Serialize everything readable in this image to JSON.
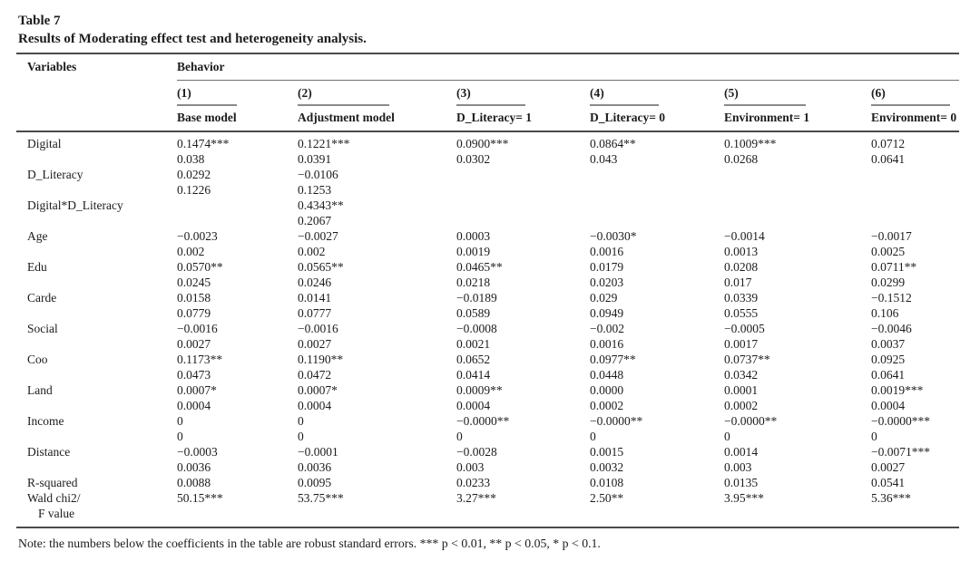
{
  "title": {
    "table_number": "Table 7",
    "caption": "Results of Moderating effect test and heterogeneity analysis."
  },
  "table": {
    "corner_header": "Variables",
    "group_header": "Behavior",
    "column_numbers": [
      "(1)",
      "(2)",
      "(3)",
      "(4)",
      "(5)",
      "(6)"
    ],
    "column_models": [
      "Base model",
      "Adjustment model",
      "D_Literacy= 1",
      "D_Literacy= 0",
      "Environment= 1",
      "Environment= 0"
    ],
    "rows": [
      {
        "label": "Digital",
        "indent": false,
        "cells": [
          "0.1474***",
          "0.1221***",
          "0.0900***",
          "0.0864**",
          "0.1009***",
          "0.0712"
        ]
      },
      {
        "label": "",
        "indent": false,
        "cells": [
          "0.038",
          "0.0391",
          "0.0302",
          "0.043",
          "0.0268",
          "0.0641"
        ]
      },
      {
        "label": "D_Literacy",
        "indent": false,
        "cells": [
          "0.0292",
          "−0.0106",
          "",
          "",
          "",
          ""
        ]
      },
      {
        "label": "",
        "indent": false,
        "cells": [
          "0.1226",
          "0.1253",
          "",
          "",
          "",
          ""
        ]
      },
      {
        "label": "Digital*D_Literacy",
        "indent": false,
        "cells": [
          "",
          "0.4343**",
          "",
          "",
          "",
          ""
        ]
      },
      {
        "label": "",
        "indent": false,
        "cells": [
          "",
          "0.2067",
          "",
          "",
          "",
          ""
        ]
      },
      {
        "label": "Age",
        "indent": false,
        "cells": [
          "−0.0023",
          "−0.0027",
          "0.0003",
          "−0.0030*",
          "−0.0014",
          "−0.0017"
        ]
      },
      {
        "label": "",
        "indent": false,
        "cells": [
          "0.002",
          "0.002",
          "0.0019",
          "0.0016",
          "0.0013",
          "0.0025"
        ]
      },
      {
        "label": "Edu",
        "indent": false,
        "cells": [
          "0.0570**",
          "0.0565**",
          "0.0465**",
          "0.0179",
          "0.0208",
          "0.0711**"
        ]
      },
      {
        "label": "",
        "indent": false,
        "cells": [
          "0.0245",
          "0.0246",
          "0.0218",
          "0.0203",
          "0.017",
          "0.0299"
        ]
      },
      {
        "label": "Carde",
        "indent": false,
        "cells": [
          "0.0158",
          "0.0141",
          "−0.0189",
          "0.029",
          "0.0339",
          "−0.1512"
        ]
      },
      {
        "label": "",
        "indent": false,
        "cells": [
          "0.0779",
          "0.0777",
          "0.0589",
          "0.0949",
          "0.0555",
          "0.106"
        ]
      },
      {
        "label": "Social",
        "indent": false,
        "cells": [
          "−0.0016",
          "−0.0016",
          "−0.0008",
          "−0.002",
          "−0.0005",
          "−0.0046"
        ]
      },
      {
        "label": "",
        "indent": false,
        "cells": [
          "0.0027",
          "0.0027",
          "0.0021",
          "0.0016",
          "0.0017",
          "0.0037"
        ]
      },
      {
        "label": "Coo",
        "indent": false,
        "cells": [
          "0.1173**",
          "0.1190**",
          "0.0652",
          "0.0977**",
          "0.0737**",
          "0.0925"
        ]
      },
      {
        "label": "",
        "indent": false,
        "cells": [
          "0.0473",
          "0.0472",
          "0.0414",
          "0.0448",
          "0.0342",
          "0.0641"
        ]
      },
      {
        "label": "Land",
        "indent": false,
        "cells": [
          "0.0007*",
          "0.0007*",
          "0.0009**",
          "0.0000",
          "0.0001",
          "0.0019***"
        ]
      },
      {
        "label": "",
        "indent": false,
        "cells": [
          "0.0004",
          "0.0004",
          "0.0004",
          "0.0002",
          "0.0002",
          "0.0004"
        ]
      },
      {
        "label": "Income",
        "indent": false,
        "cells": [
          "0",
          "0",
          "−0.0000**",
          "−0.0000**",
          "−0.0000**",
          "−0.0000***"
        ]
      },
      {
        "label": "",
        "indent": false,
        "cells": [
          "0",
          "0",
          "0",
          "0",
          "0",
          "0"
        ]
      },
      {
        "label": "Distance",
        "indent": false,
        "cells": [
          "−0.0003",
          "−0.0001",
          "−0.0028",
          "0.0015",
          "0.0014",
          "−0.0071***"
        ]
      },
      {
        "label": "",
        "indent": false,
        "cells": [
          "0.0036",
          "0.0036",
          "0.003",
          "0.0032",
          "0.003",
          "0.0027"
        ]
      },
      {
        "label": "R-squared",
        "indent": false,
        "cells": [
          "0.0088",
          "0.0095",
          "0.0233",
          "0.0108",
          "0.0135",
          "0.0541"
        ]
      },
      {
        "label": "Wald chi2/",
        "indent": false,
        "cells": [
          "50.15***",
          "53.75***",
          "3.27***",
          "2.50**",
          "3.95***",
          "5.36***"
        ]
      },
      {
        "label": "F value",
        "indent": true,
        "cells": [
          "",
          "",
          "",
          "",
          "",
          ""
        ]
      }
    ]
  },
  "note": "Note: the numbers below the coefficients in the table are robust standard errors. *** p < 0.01, ** p < 0.05, * p < 0.1.",
  "colors": {
    "background": "#ffffff",
    "text": "#1c1c1c",
    "rule_heavy": "#4a4a4a",
    "rule_light": "#6f6f6f"
  }
}
